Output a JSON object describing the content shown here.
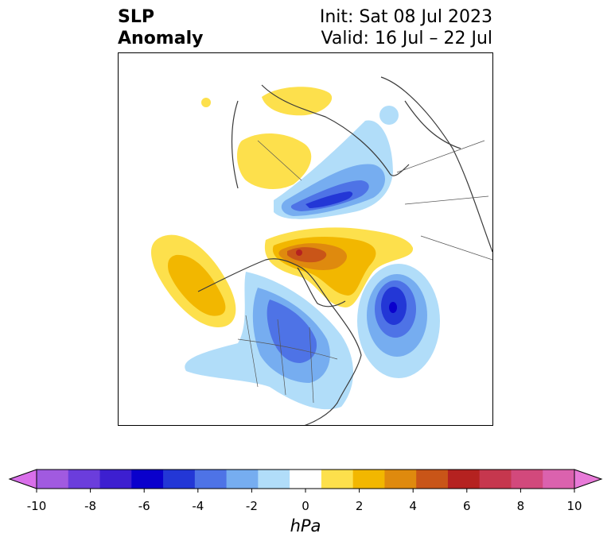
{
  "title": {
    "left": [
      "SLP",
      "Anomaly"
    ],
    "right": [
      "Init: Sat 08 Jul 2023",
      "Valid: 16 Jul – 22 Jul"
    ]
  },
  "colorbar": {
    "unit": "hPa",
    "tick_labels": [
      "-10",
      "-8",
      "-6",
      "-4",
      "-2",
      "0",
      "2",
      "4",
      "6",
      "8",
      "10"
    ],
    "colors": [
      "#d96fea",
      "#a15ae0",
      "#6b3ddc",
      "#3d1fd0",
      "#0a00cc",
      "#2337d6",
      "#4e73e6",
      "#76adf0",
      "#b1ddf9",
      "#ffffff",
      "#fde04c",
      "#f2b700",
      "#df8a0e",
      "#c95518",
      "#b52220",
      "#c6374e",
      "#d2497c",
      "#db62ae",
      "#e87ad8"
    ]
  }
}
